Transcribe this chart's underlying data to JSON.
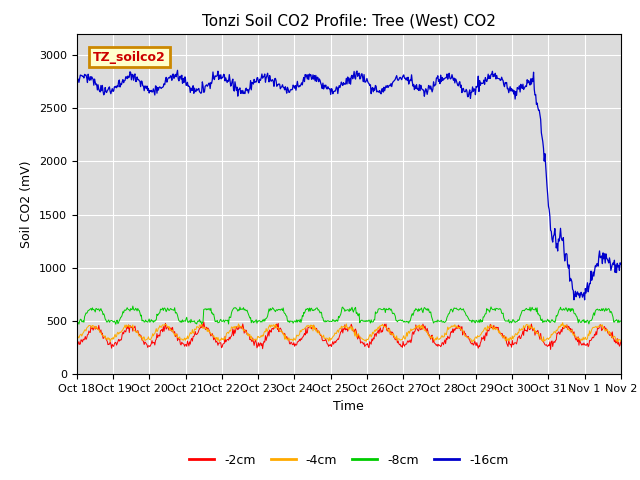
{
  "title": "Tonzi Soil CO2 Profile: Tree (West) CO2",
  "ylabel": "Soil CO2 (mV)",
  "xlabel": "Time",
  "ylim": [
    0,
    3200
  ],
  "yticks": [
    0,
    500,
    1000,
    1500,
    2000,
    2500,
    3000
  ],
  "x_labels": [
    "Oct 18",
    "Oct 19",
    "Oct 20",
    "Oct 21",
    "Oct 22",
    "Oct 23",
    "Oct 24",
    "Oct 25",
    "Oct 26",
    "Oct 27",
    "Oct 28",
    "Oct 29",
    "Oct 30",
    "Oct 31",
    "Nov 1",
    "Nov 2"
  ],
  "legend_label": "TZ_soilco2",
  "legend_bg": "#ffffcc",
  "legend_border": "#cc8800",
  "line_colors": {
    "-2cm": "#ff0000",
    "-4cm": "#ffaa00",
    "-8cm": "#00cc00",
    "-16cm": "#0000cc"
  },
  "bg_color": "#dcdcdc",
  "fig_bg": "#ffffff",
  "title_fontsize": 11,
  "axis_fontsize": 9,
  "tick_fontsize": 8
}
